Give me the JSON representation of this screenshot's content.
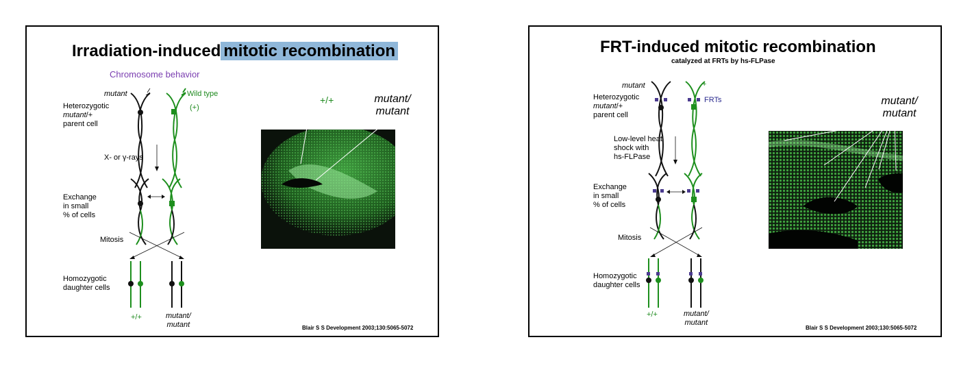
{
  "slide1": {
    "title_plain": "Irradiation-induced",
    "title_highlight": "mitotic recombination",
    "subtitle": "Chromosome behavior",
    "mutant_label": "mutant",
    "wild_type": "Wild type",
    "plus_paren": "(+)",
    "hetero_1": "Heterozygotic",
    "hetero_2_italic": "mutant",
    "hetero_2_rest": "/+",
    "hetero_3": "parent cell",
    "xray": "X- or γ-rays",
    "exchange_1": "Exchange",
    "exchange_2": "in small",
    "exchange_3": "% of cells",
    "mitosis": "Mitosis",
    "homo_1": "Homozygotic",
    "homo_2": "daughter cells",
    "bottom_plus": "+/+",
    "bottom_mut_1": "mutant/",
    "bottom_mut_2": "mutant",
    "img_plus": "+/+",
    "img_mut_1": "mutant/",
    "img_mut_2": "mutant",
    "citation": "Blair S S Development 2003;130:5065-5072"
  },
  "slide2": {
    "title": "FRT-induced mitotic recombination",
    "subtitle": "catalyzed at FRTs by hs-FLPase",
    "mutant_label": "mutant",
    "plus": "+",
    "frts": "FRTs",
    "hetero_1": "Heterozygotic",
    "hetero_2_italic": "mutant",
    "hetero_2_rest": "/+",
    "hetero_3": "parent cell",
    "heat_1": "Low-level heat",
    "heat_2": "shock  with",
    "heat_3": "hs-FLPase",
    "exchange_1": "Exchange",
    "exchange_2": "in small",
    "exchange_3": "% of cells",
    "mitosis": "Mitosis",
    "homo_1": "Homozygotic",
    "homo_2": "daughter cells",
    "bottom_plus": "+/+",
    "bottom_mut_1": "mutant/",
    "bottom_mut_2": "mutant",
    "img_mut_1": "mutant/",
    "img_mut_2": "mutant",
    "citation": "Blair S S Development 2003;130:5065-5072"
  },
  "colors": {
    "wild_type_green": "#1d8f1d",
    "frt_purple": "#4b3b8f",
    "highlight": "#8fb7d9",
    "subtitle_purple": "#7a3db0"
  }
}
